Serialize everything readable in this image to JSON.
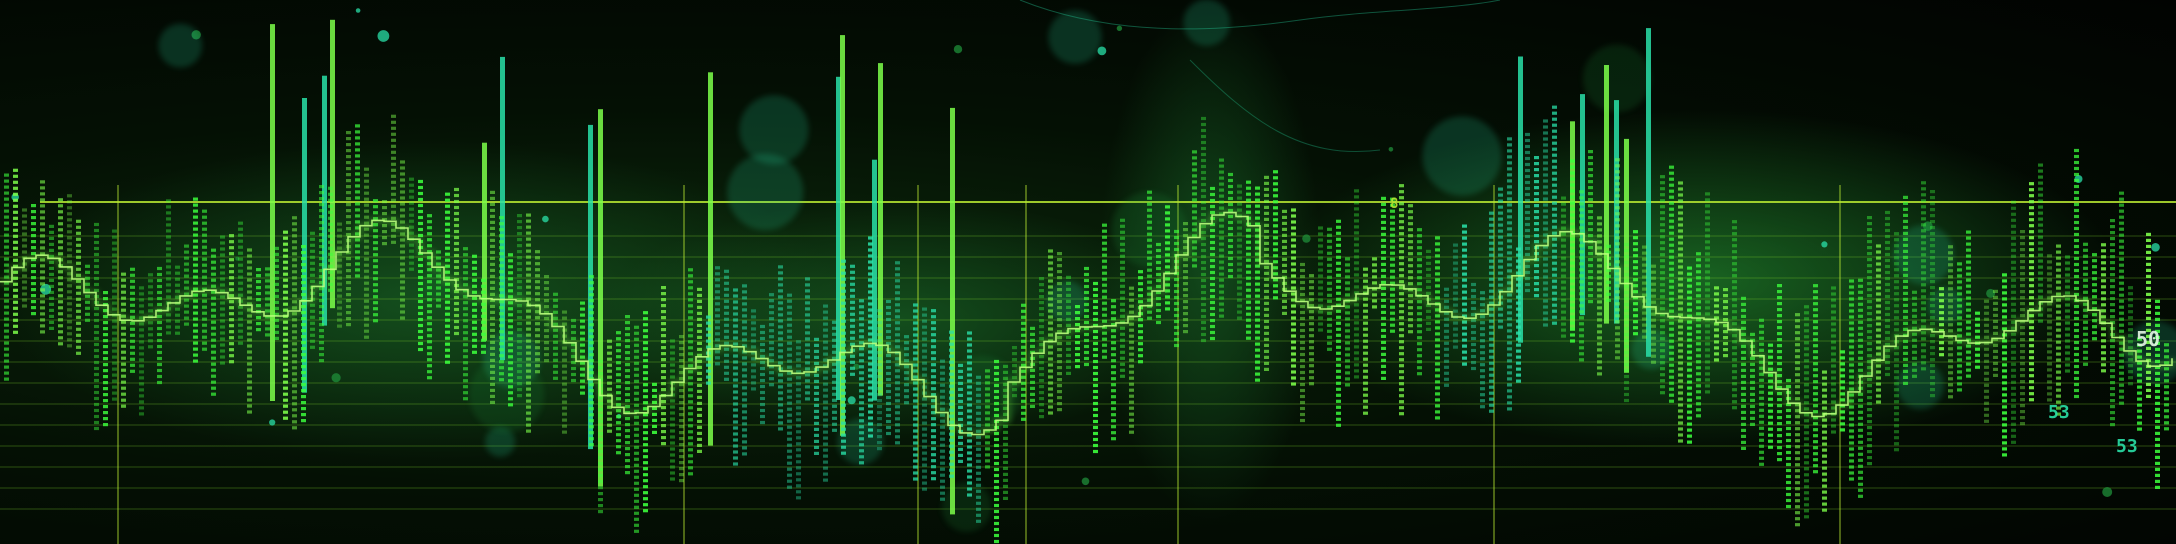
{
  "image": {
    "kind": "abstract financial data visualization artwork",
    "palette": {
      "background": "#020402",
      "primary_green": "#3cff3c",
      "bright_green": "#7dff4a",
      "teal": "#29e0a8",
      "grid_yellow_green": "#b8e832",
      "bokeh": "#1f8f3a"
    },
    "text_fragments": [
      "50",
      "53",
      "53",
      "8"
    ]
  }
}
